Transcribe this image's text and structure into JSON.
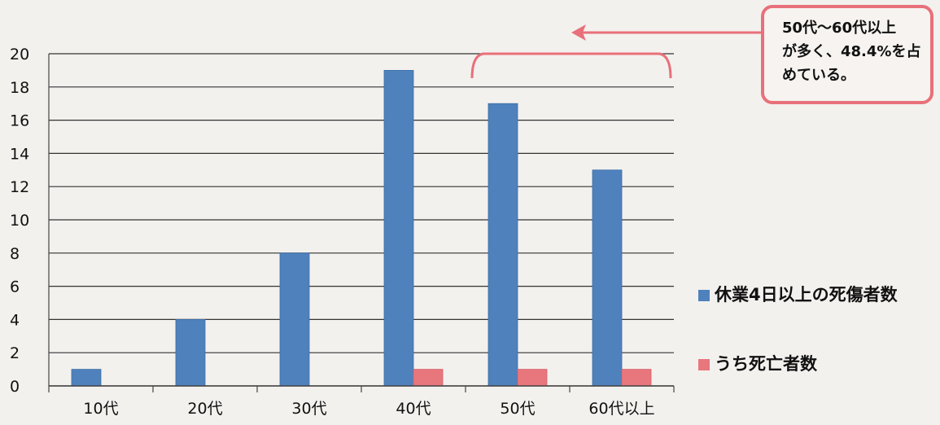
{
  "chart_data": {
    "type": "bar",
    "categories": [
      "10代",
      "20代",
      "30代",
      "40代",
      "50代",
      "60代以上"
    ],
    "series": [
      {
        "name": "休業4日以上の死傷者数",
        "values": [
          1,
          4,
          8,
          19,
          17,
          13
        ],
        "color": "#4f81bd"
      },
      {
        "name": "うち死亡者数",
        "values": [
          0,
          0,
          0,
          1,
          1,
          1
        ],
        "color": "#e8777d"
      }
    ],
    "yticks": [
      0,
      2,
      4,
      6,
      8,
      10,
      12,
      14,
      16,
      18,
      20
    ],
    "ylim": [
      0,
      20
    ],
    "grid": true,
    "legend_position": "right",
    "title": "",
    "xlabel": "",
    "ylabel": "",
    "annotation": {
      "lines": [
        "50代～60代以上",
        "が多く、48.4%を占",
        "めている。"
      ],
      "target_categories": [
        "50代",
        "60代以上"
      ]
    }
  },
  "colors": {
    "annotation": "#e8707a",
    "grid": "#333333"
  }
}
